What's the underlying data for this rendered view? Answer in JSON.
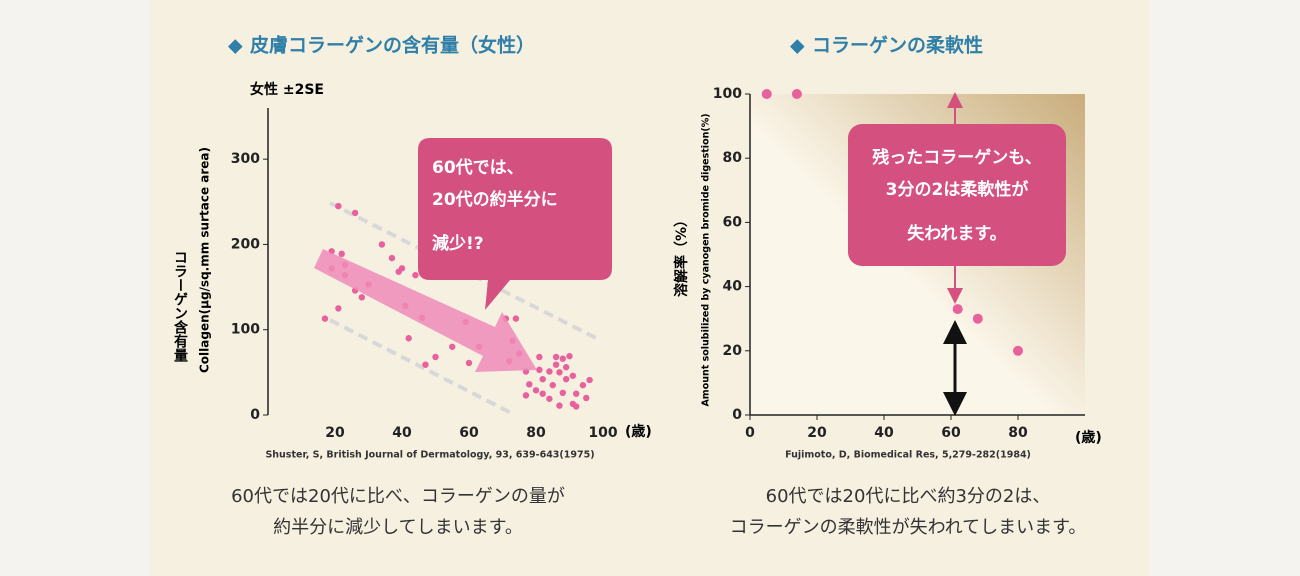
{
  "chart_data": [
    {
      "type": "scatter",
      "title": "皮膚コラーゲンの含有量（女性）",
      "annotation": "女性 ±2SE",
      "y_label": "コラーゲン含有量",
      "y_label_en": "Collagen(μg/sq.mm surtace area)",
      "x_label": "(歳)",
      "source": "Shuster, S, British Journal of Dermatology, 93, 639-643(1975)",
      "callout": [
        "60代では、",
        "20代の約半分に",
        "減少!?"
      ],
      "caption": [
        "60代では20代に比べ、コラーゲンの量が",
        "約半分に減少してしまいます。"
      ],
      "color": "#e8609c",
      "xlim": [
        0,
        100
      ],
      "ylim": [
        0,
        360
      ],
      "xticks": [
        20,
        40,
        60,
        80,
        100
      ],
      "yticks": [
        0,
        100,
        200,
        300
      ],
      "x": [
        17,
        19,
        19,
        21,
        22,
        23,
        23,
        21,
        26,
        26,
        28,
        30,
        34,
        37,
        39,
        40,
        44,
        41,
        46,
        42,
        47,
        50,
        55,
        59,
        60,
        63,
        71,
        74,
        73,
        75,
        72,
        77,
        78,
        80,
        81,
        82,
        84,
        85,
        86,
        87,
        88,
        89,
        89,
        90,
        91,
        92,
        94,
        95,
        96,
        92,
        87,
        82,
        77,
        86,
        84,
        88,
        91,
        81
      ],
      "values": [
        113,
        192,
        172,
        245,
        189,
        176,
        164,
        125,
        237,
        146,
        138,
        153,
        200,
        184,
        168,
        172,
        164,
        128,
        114,
        90,
        59,
        68,
        80,
        109,
        61,
        80,
        113,
        113,
        87,
        72,
        63,
        51,
        36,
        29,
        68,
        42,
        19,
        35,
        68,
        50,
        26,
        42,
        56,
        69,
        46,
        25,
        35,
        20,
        41,
        10,
        11,
        25,
        23,
        59,
        51,
        66,
        13,
        53
      ]
    },
    {
      "type": "scatter",
      "title": "コラーゲンの柔軟性",
      "y_label": "溶解率（%）",
      "y_label_en": "Amount solubilized by cyanogen bromide digestion(%)",
      "x_label": "(歳)",
      "source": "Fujimoto, D, Biomedical Res, 5,279-282(1984)",
      "callout": [
        "残ったコラーゲンも、",
        "3分の2は柔軟性が",
        "失われます。"
      ],
      "caption": [
        "60代では20代に比べ約3分の2は、",
        "コラーゲンの柔軟性が失われてしまいます。"
      ],
      "color": "#e8609c",
      "xlim": [
        0,
        100
      ],
      "ylim": [
        0,
        100
      ],
      "xticks": [
        0,
        20,
        40,
        60,
        80
      ],
      "yticks": [
        0,
        20,
        40,
        60,
        80,
        100
      ],
      "x": [
        5,
        14,
        62,
        68,
        80
      ],
      "values": [
        100,
        100,
        33,
        30,
        20
      ]
    }
  ]
}
